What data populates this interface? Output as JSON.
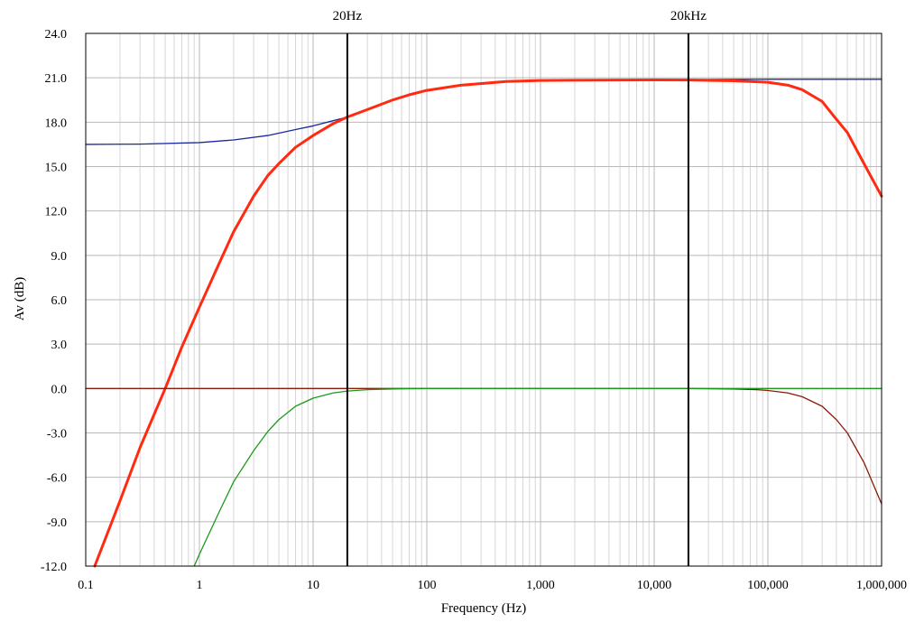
{
  "chart_data": {
    "type": "line",
    "title": "",
    "xlabel": "Frequency (Hz)",
    "ylabel": "Av (dB)",
    "xscale": "log",
    "xlim": [
      0.1,
      1000000
    ],
    "ylim": [
      -12,
      24
    ],
    "grid": true,
    "x_ticks": [
      {
        "value": 0.1,
        "label": "0.1"
      },
      {
        "value": 1,
        "label": "1"
      },
      {
        "value": 10,
        "label": "10"
      },
      {
        "value": 100,
        "label": "100"
      },
      {
        "value": 1000,
        "label": "1,000"
      },
      {
        "value": 10000,
        "label": "10,000"
      },
      {
        "value": 100000,
        "label": "100,000"
      },
      {
        "value": 1000000,
        "label": "1,000,000"
      }
    ],
    "y_ticks": [
      {
        "value": 24,
        "label": "24.0"
      },
      {
        "value": 21,
        "label": "21.0"
      },
      {
        "value": 18,
        "label": "18.0"
      },
      {
        "value": 15,
        "label": "15.0"
      },
      {
        "value": 12,
        "label": "12.0"
      },
      {
        "value": 9,
        "label": "9.0"
      },
      {
        "value": 6,
        "label": "6.0"
      },
      {
        "value": 3,
        "label": "3.0"
      },
      {
        "value": 0,
        "label": "0.0"
      },
      {
        "value": -3,
        "label": "-3.0"
      },
      {
        "value": -6,
        "label": "-6.0"
      },
      {
        "value": -9,
        "label": "-9.0"
      },
      {
        "value": -12,
        "label": "-12.0"
      }
    ],
    "markers": [
      {
        "x": 20,
        "label": "20Hz"
      },
      {
        "x": 20000,
        "label": "20kHz"
      }
    ],
    "series": [
      {
        "color": "#1a2a9a",
        "width": 1.3,
        "points": [
          [
            0.1,
            16.5
          ],
          [
            0.3,
            16.52
          ],
          [
            1,
            16.62
          ],
          [
            2,
            16.8
          ],
          [
            4,
            17.1
          ],
          [
            7,
            17.5
          ],
          [
            10,
            17.75
          ],
          [
            15,
            18.1
          ],
          [
            20,
            18.35
          ],
          [
            30,
            18.85
          ],
          [
            50,
            19.5
          ],
          [
            70,
            19.85
          ],
          [
            100,
            20.15
          ],
          [
            200,
            20.5
          ],
          [
            500,
            20.75
          ],
          [
            1000,
            20.82
          ],
          [
            10000,
            20.88
          ],
          [
            100000,
            20.9
          ],
          [
            1000000,
            20.9
          ]
        ]
      },
      {
        "color": "#ff2a10",
        "width": 3,
        "points": [
          [
            0.12,
            -12
          ],
          [
            0.2,
            -7.6
          ],
          [
            0.3,
            -4
          ],
          [
            0.5,
            0
          ],
          [
            0.7,
            2.8
          ],
          [
            1,
            5.5
          ],
          [
            1.5,
            8.5
          ],
          [
            2,
            10.6
          ],
          [
            3,
            13
          ],
          [
            4,
            14.4
          ],
          [
            5,
            15.2
          ],
          [
            7,
            16.3
          ],
          [
            10,
            17.1
          ],
          [
            15,
            17.9
          ],
          [
            20,
            18.35
          ],
          [
            30,
            18.85
          ],
          [
            50,
            19.5
          ],
          [
            70,
            19.85
          ],
          [
            100,
            20.15
          ],
          [
            200,
            20.5
          ],
          [
            500,
            20.75
          ],
          [
            1000,
            20.82
          ],
          [
            10000,
            20.86
          ],
          [
            20000,
            20.85
          ],
          [
            50000,
            20.8
          ],
          [
            100000,
            20.7
          ],
          [
            150000,
            20.5
          ],
          [
            200000,
            20.2
          ],
          [
            300000,
            19.4
          ],
          [
            400000,
            18.2
          ],
          [
            500000,
            17.3
          ],
          [
            700000,
            15.2
          ],
          [
            1000000,
            13
          ]
        ]
      },
      {
        "color": "#8b1a0a",
        "width": 1.3,
        "points": [
          [
            0.1,
            0
          ],
          [
            1000,
            0
          ],
          [
            10000,
            0
          ],
          [
            20000,
            0
          ],
          [
            50000,
            -0.03
          ],
          [
            80000,
            -0.08
          ],
          [
            100000,
            -0.13
          ],
          [
            150000,
            -0.3
          ],
          [
            200000,
            -0.55
          ],
          [
            300000,
            -1.2
          ],
          [
            400000,
            -2.1
          ],
          [
            500000,
            -3
          ],
          [
            700000,
            -5
          ],
          [
            1000000,
            -7.8
          ]
        ]
      },
      {
        "color": "#1a9a1a",
        "width": 1.3,
        "points": [
          [
            0.9,
            -12
          ],
          [
            1,
            -11.2
          ],
          [
            1.5,
            -8.3
          ],
          [
            2,
            -6.3
          ],
          [
            3,
            -4.2
          ],
          [
            4,
            -2.9
          ],
          [
            5,
            -2.1
          ],
          [
            7,
            -1.2
          ],
          [
            10,
            -0.65
          ],
          [
            15,
            -0.3
          ],
          [
            20,
            -0.17
          ],
          [
            30,
            -0.08
          ],
          [
            50,
            -0.03
          ],
          [
            100,
            0
          ],
          [
            1000000,
            0
          ]
        ]
      }
    ]
  }
}
